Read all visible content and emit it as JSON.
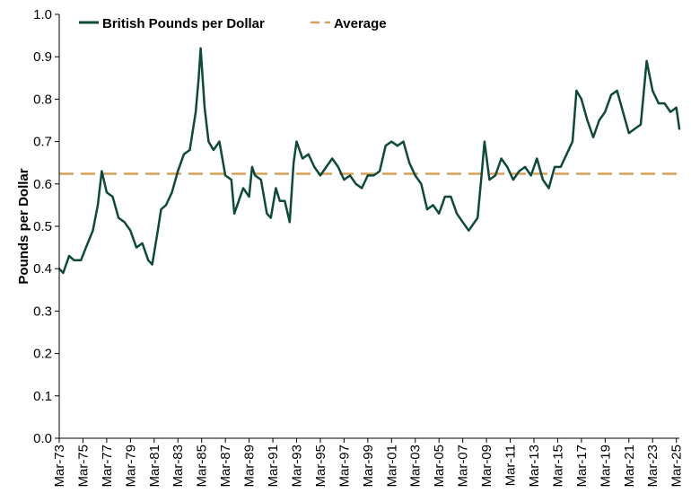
{
  "chart_data": {
    "type": "line",
    "title": "",
    "xlabel": "",
    "ylabel": "Pounds per Dollar",
    "ylim": [
      0,
      1.0
    ],
    "y_ticks": [
      "0.0",
      "0.1",
      "0.2",
      "0.3",
      "0.4",
      "0.5",
      "0.6",
      "0.7",
      "0.8",
      "0.9",
      "1.0"
    ],
    "x_ticks": [
      "Mar-73",
      "Mar-75",
      "Mar-77",
      "Mar-79",
      "Mar-81",
      "Mar-83",
      "Mar-85",
      "Mar-87",
      "Mar-89",
      "Mar-91",
      "Mar-93",
      "Mar-95",
      "Mar-97",
      "Mar-99",
      "Mar-01",
      "Mar-03",
      "Mar-05",
      "Mar-07",
      "Mar-09",
      "Mar-11",
      "Mar-13",
      "Mar-15",
      "Mar-17",
      "Mar-19",
      "Mar-21",
      "Mar-23",
      "Mar-25"
    ],
    "xlim": [
      "1973-03",
      "2025-06"
    ],
    "grid": false,
    "legend": "top-left",
    "series": [
      {
        "name": "British Pounds per Dollar",
        "color": "#0d4a3b",
        "x": [
          "1973-03",
          "1973-07",
          "1974-01",
          "1974-06",
          "1975-01",
          "1975-06",
          "1976-01",
          "1976-06",
          "1976-10",
          "1977-03",
          "1977-09",
          "1978-03",
          "1978-09",
          "1979-03",
          "1979-09",
          "1980-03",
          "1980-09",
          "1981-01",
          "1981-06",
          "1981-10",
          "1982-03",
          "1982-09",
          "1983-03",
          "1983-09",
          "1984-03",
          "1984-09",
          "1984-12",
          "1985-02",
          "1985-06",
          "1985-10",
          "1986-03",
          "1986-09",
          "1987-03",
          "1987-09",
          "1987-12",
          "1988-03",
          "1988-09",
          "1989-03",
          "1989-06",
          "1989-09",
          "1990-03",
          "1990-09",
          "1991-01",
          "1991-06",
          "1991-10",
          "1992-03",
          "1992-08",
          "1992-12",
          "1993-03",
          "1993-09",
          "1994-03",
          "1994-09",
          "1995-03",
          "1995-09",
          "1996-03",
          "1996-09",
          "1997-03",
          "1997-09",
          "1998-03",
          "1998-09",
          "1999-03",
          "1999-09",
          "2000-03",
          "2000-09",
          "2001-03",
          "2001-09",
          "2002-03",
          "2002-09",
          "2003-03",
          "2003-09",
          "2004-03",
          "2004-09",
          "2005-03",
          "2005-09",
          "2006-03",
          "2006-09",
          "2007-03",
          "2007-09",
          "2007-12",
          "2008-06",
          "2008-10",
          "2009-01",
          "2009-06",
          "2009-12",
          "2010-06",
          "2010-12",
          "2011-06",
          "2011-12",
          "2012-06",
          "2012-12",
          "2013-06",
          "2013-12",
          "2014-06",
          "2014-12",
          "2015-06",
          "2015-12",
          "2016-06",
          "2016-10",
          "2017-03",
          "2017-09",
          "2018-03",
          "2018-09",
          "2019-03",
          "2019-09",
          "2020-03",
          "2020-09",
          "2021-03",
          "2021-09",
          "2022-03",
          "2022-09",
          "2023-03",
          "2023-09",
          "2024-03",
          "2024-09",
          "2025-03",
          "2025-06"
        ],
        "values": [
          0.4,
          0.39,
          0.43,
          0.42,
          0.42,
          0.45,
          0.49,
          0.55,
          0.63,
          0.58,
          0.57,
          0.52,
          0.51,
          0.49,
          0.45,
          0.46,
          0.42,
          0.41,
          0.48,
          0.54,
          0.55,
          0.58,
          0.63,
          0.67,
          0.68,
          0.77,
          0.85,
          0.92,
          0.78,
          0.7,
          0.68,
          0.7,
          0.62,
          0.61,
          0.53,
          0.55,
          0.59,
          0.57,
          0.64,
          0.62,
          0.61,
          0.53,
          0.52,
          0.59,
          0.56,
          0.56,
          0.51,
          0.65,
          0.7,
          0.66,
          0.67,
          0.64,
          0.62,
          0.64,
          0.66,
          0.64,
          0.61,
          0.62,
          0.6,
          0.59,
          0.62,
          0.62,
          0.63,
          0.69,
          0.7,
          0.69,
          0.7,
          0.65,
          0.62,
          0.6,
          0.54,
          0.55,
          0.53,
          0.57,
          0.57,
          0.53,
          0.51,
          0.49,
          0.5,
          0.52,
          0.62,
          0.7,
          0.61,
          0.62,
          0.66,
          0.64,
          0.61,
          0.63,
          0.64,
          0.62,
          0.66,
          0.61,
          0.59,
          0.64,
          0.64,
          0.67,
          0.7,
          0.82,
          0.8,
          0.75,
          0.71,
          0.75,
          0.77,
          0.81,
          0.82,
          0.77,
          0.72,
          0.73,
          0.74,
          0.89,
          0.82,
          0.79,
          0.79,
          0.77,
          0.78,
          0.73
        ]
      },
      {
        "name": "Average",
        "color": "#d4a25a",
        "style": "dashed",
        "x": [
          "1973-03",
          "2025-06"
        ],
        "values": [
          0.624,
          0.624
        ]
      }
    ]
  }
}
